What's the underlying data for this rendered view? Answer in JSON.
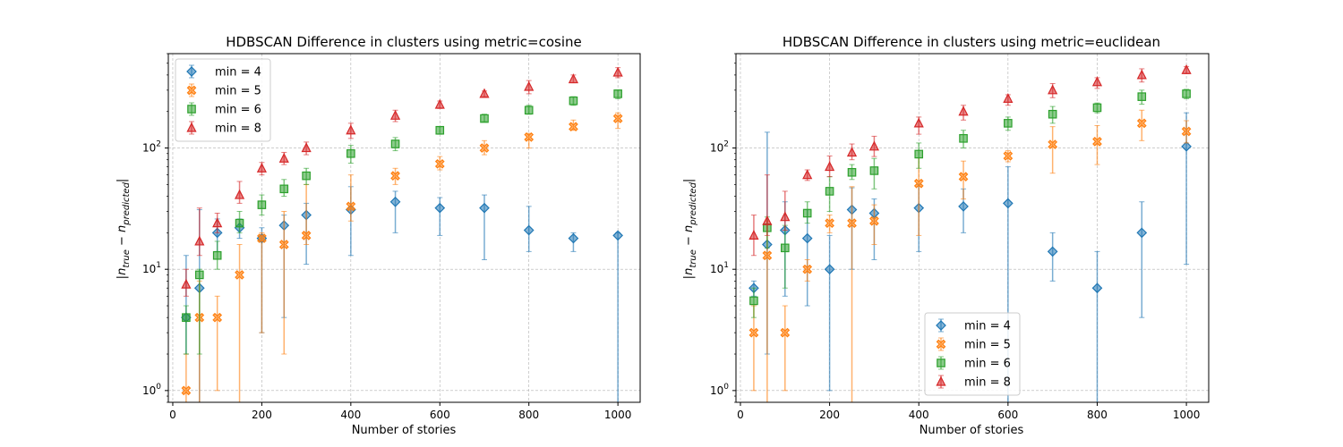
{
  "chart_data": [
    {
      "type": "scatter",
      "title": "HDBSCAN Difference in clusters using metric=cosine",
      "xlabel": "Number of stories",
      "ylabel": "|n_true - n_predicted|",
      "yscale": "log",
      "xlim": [
        -10,
        1050
      ],
      "ylim": [
        0.8,
        600
      ],
      "xticks": [
        0,
        200,
        400,
        600,
        800,
        1000
      ],
      "yticks": [
        1,
        10,
        100
      ],
      "grid": true,
      "legend": "upper-left",
      "x": [
        30,
        60,
        100,
        150,
        200,
        250,
        300,
        400,
        500,
        600,
        700,
        800,
        900,
        1000
      ],
      "series": [
        {
          "name": "min = 4",
          "color": "#1f77b4",
          "marker": "diamond",
          "values": [
            4,
            7,
            20,
            22,
            18,
            23,
            28,
            31,
            36,
            32,
            32,
            21,
            18,
            19
          ],
          "err_low": [
            2,
            0.5,
            14,
            18,
            3,
            4,
            11,
            13,
            20,
            19,
            12,
            14,
            14,
            0.5
          ],
          "err_high": [
            13,
            31,
            26,
            26,
            22,
            28,
            35,
            48,
            44,
            39,
            41,
            33,
            20,
            20
          ]
        },
        {
          "name": "min = 5",
          "color": "#ff7f0e",
          "marker": "x",
          "values": [
            1,
            4,
            4,
            9,
            18,
            16,
            19,
            33,
            59,
            74,
            100,
            123,
            150,
            175
          ],
          "err_low": [
            0.7,
            0.5,
            1,
            0.5,
            3,
            2,
            16,
            25,
            50,
            66,
            88,
            100,
            140,
            145
          ],
          "err_high": [
            2,
            8,
            6,
            16,
            20,
            30,
            50,
            60,
            68,
            85,
            115,
            132,
            170,
            195
          ]
        },
        {
          "name": "min = 6",
          "color": "#2ca02c",
          "marker": "square",
          "values": [
            4,
            9,
            13,
            24,
            34,
            46,
            59,
            90,
            108,
            140,
            175,
            205,
            245,
            280
          ],
          "err_low": [
            2,
            2,
            10,
            20,
            28,
            40,
            50,
            75,
            95,
            130,
            165,
            190,
            225,
            255
          ],
          "err_high": [
            5,
            10,
            17,
            30,
            41,
            55,
            68,
            105,
            122,
            150,
            190,
            225,
            265,
            300
          ]
        },
        {
          "name": "min = 8",
          "color": "#d62728",
          "marker": "triangle",
          "values": [
            7.5,
            17,
            24,
            41,
            68,
            82,
            100,
            140,
            185,
            228,
            280,
            320,
            370,
            420
          ],
          "err_low": [
            6,
            13,
            20,
            35,
            60,
            73,
            88,
            120,
            165,
            212,
            265,
            280,
            345,
            380
          ],
          "err_high": [
            10,
            32,
            29,
            53,
            76,
            92,
            112,
            160,
            205,
            244,
            295,
            360,
            400,
            460
          ]
        }
      ]
    },
    {
      "type": "scatter",
      "title": "HDBSCAN Difference in clusters using metric=euclidean",
      "xlabel": "Number of stories",
      "ylabel": "|n_true - n_predicted|",
      "yscale": "log",
      "xlim": [
        -10,
        1050
      ],
      "ylim": [
        0.8,
        600
      ],
      "xticks": [
        0,
        200,
        400,
        600,
        800,
        1000
      ],
      "yticks": [
        1,
        10,
        100
      ],
      "grid": true,
      "legend": "lower-center",
      "x": [
        30,
        60,
        100,
        150,
        200,
        250,
        300,
        400,
        500,
        600,
        700,
        800,
        900,
        1000
      ],
      "series": [
        {
          "name": "min = 4",
          "color": "#1f77b4",
          "marker": "diamond",
          "values": [
            7,
            16,
            21,
            18,
            10,
            31,
            29,
            32,
            33,
            35,
            14,
            7,
            20,
            103
          ],
          "err_low": [
            6,
            2,
            6,
            5,
            1,
            10,
            12,
            14,
            20,
            0.5,
            8,
            0.5,
            4,
            11
          ],
          "err_high": [
            8,
            135,
            36,
            31,
            19,
            47,
            38,
            50,
            46,
            70,
            20,
            14,
            36,
            195
          ]
        },
        {
          "name": "min = 5",
          "color": "#ff7f0e",
          "marker": "x",
          "values": [
            3,
            13,
            3,
            10,
            24,
            24,
            25,
            51,
            58,
            86,
            107,
            113,
            160,
            137
          ],
          "err_low": [
            1,
            0.5,
            1,
            8,
            20,
            0.5,
            16,
            19,
            38,
            77,
            62,
            73,
            115,
            110
          ],
          "err_high": [
            5,
            25,
            5,
            12,
            28,
            48,
            34,
            83,
            78,
            95,
            150,
            153,
            205,
            168
          ]
        },
        {
          "name": "min = 6",
          "color": "#2ca02c",
          "marker": "square",
          "values": [
            5.5,
            22,
            15,
            29,
            44,
            63,
            65,
            89,
            120,
            160,
            190,
            215,
            265,
            280
          ],
          "err_low": [
            4,
            15,
            7,
            24,
            30,
            55,
            46,
            68,
            100,
            140,
            160,
            195,
            230,
            255
          ],
          "err_high": [
            7,
            27,
            23,
            36,
            58,
            73,
            82,
            110,
            140,
            180,
            220,
            235,
            300,
            305
          ]
        },
        {
          "name": "min = 8",
          "color": "#d62728",
          "marker": "triangle",
          "values": [
            19,
            25,
            27,
            60,
            70,
            92,
            103,
            160,
            200,
            255,
            300,
            350,
            400,
            440
          ],
          "err_low": [
            13,
            19,
            21,
            54,
            58,
            80,
            85,
            130,
            170,
            225,
            260,
            310,
            350,
            410
          ],
          "err_high": [
            28,
            60,
            44,
            66,
            86,
            108,
            125,
            180,
            225,
            275,
            340,
            380,
            450,
            470
          ]
        }
      ]
    }
  ]
}
